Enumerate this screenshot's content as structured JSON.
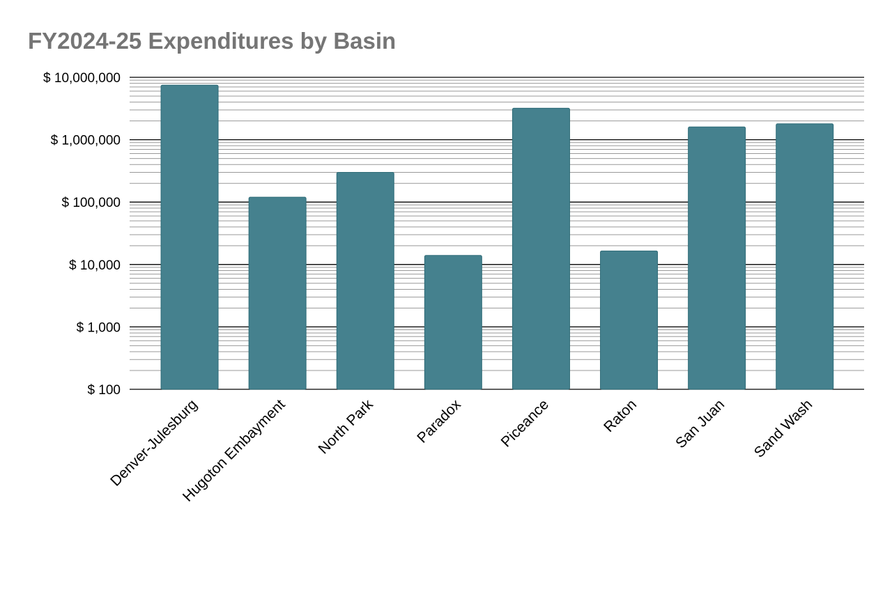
{
  "chart_data": {
    "type": "bar",
    "title": "FY2024-25 Expenditures by Basin",
    "xlabel": "",
    "ylabel": "",
    "yscale": "log",
    "ylim": [
      100,
      10000000
    ],
    "grid": true,
    "legend": "none",
    "bar_color": "#45818e",
    "title_color": "#757575",
    "categories": [
      "Denver-Julesburg",
      "Hugoton Embayment",
      "North Park",
      "Paradox",
      "Piceance",
      "Raton",
      "San Juan",
      "Sand Wash"
    ],
    "values": [
      7500000,
      120000,
      300000,
      14000,
      3200000,
      16500,
      1600000,
      1800000
    ],
    "y_ticks": [
      {
        "value": 10000000,
        "label": "$ 10,000,000"
      },
      {
        "value": 1000000,
        "label": "$ 1,000,000"
      },
      {
        "value": 100000,
        "label": "$ 100,000"
      },
      {
        "value": 10000,
        "label": "$ 10,000"
      },
      {
        "value": 1000,
        "label": "$ 1,000"
      },
      {
        "value": 100,
        "label": "$ 100"
      }
    ]
  }
}
